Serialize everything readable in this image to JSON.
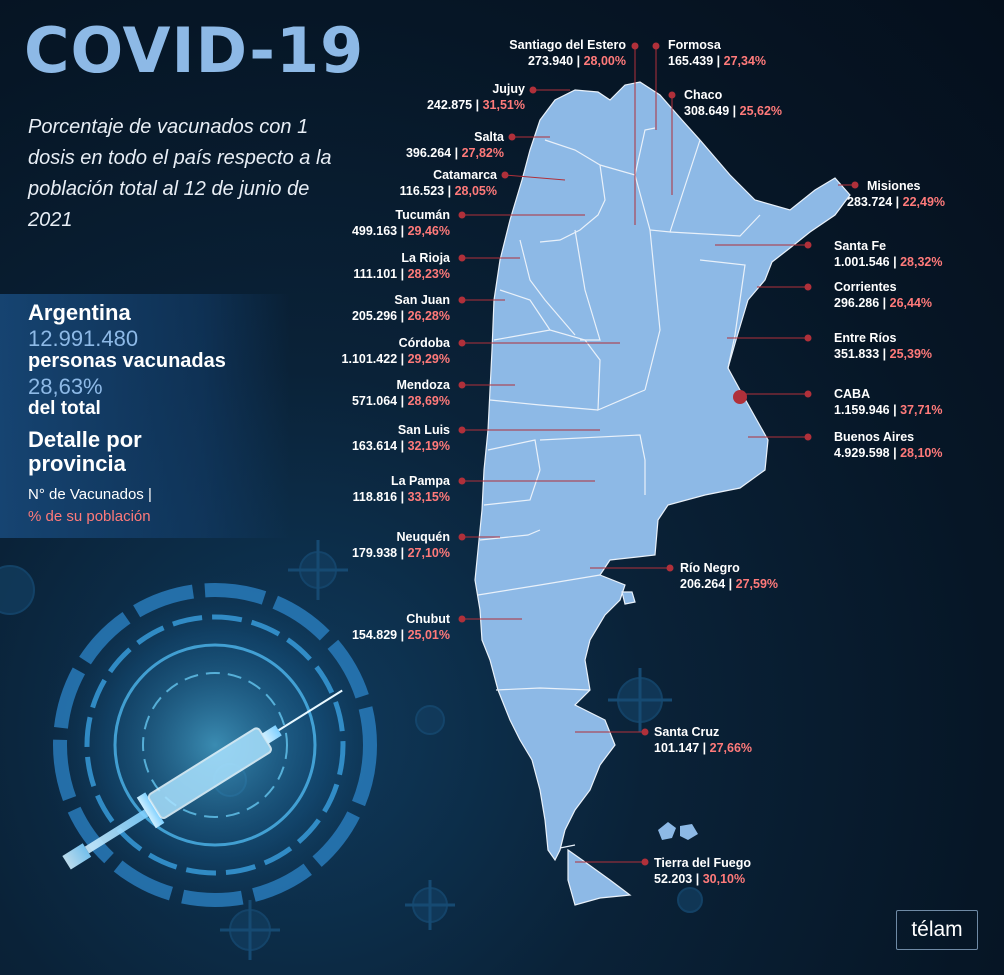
{
  "title": "COVID-19",
  "subtitle": "Porcentaje de vacunados con 1 dosis en todo el país respecto a la población total al 12 de junio de 2021",
  "summary": {
    "country": "Argentina",
    "total_vaccinated": "12.991.480",
    "people_label": "personas vacunadas",
    "percent": "28,63%",
    "of_total": "del total",
    "detail_heading": "Detalle por provincia",
    "legend_count": "N° de Vacunados |",
    "legend_percent": "% de su población"
  },
  "colors": {
    "map_fill": "#8db9e6",
    "map_border": "#e9f1fa",
    "leader_line": "#b0303a",
    "percent_text": "#ff7a7a",
    "title": "#8db9e6"
  },
  "provinces": [
    {
      "name": "Santiago del Estero",
      "count": "273.940",
      "percent": "28,00%"
    },
    {
      "name": "Formosa",
      "count": "165.439",
      "percent": "27,34%"
    },
    {
      "name": "Jujuy",
      "count": "242.875",
      "percent": "31,51%"
    },
    {
      "name": "Chaco",
      "count": "308.649",
      "percent": "25,62%"
    },
    {
      "name": "Salta",
      "count": "396.264",
      "percent": "27,82%"
    },
    {
      "name": "Catamarca",
      "count": "116.523",
      "percent": "28,05%"
    },
    {
      "name": "Misiones",
      "count": "283.724",
      "percent": "22,49%"
    },
    {
      "name": "Tucumán",
      "count": "499.163",
      "percent": "29,46%"
    },
    {
      "name": "Santa Fe",
      "count": "1.001.546",
      "percent": "28,32%"
    },
    {
      "name": "La Rioja",
      "count": "111.101",
      "percent": "28,23%"
    },
    {
      "name": "Corrientes",
      "count": "296.286",
      "percent": "26,44%"
    },
    {
      "name": "San Juan",
      "count": "205.296",
      "percent": "26,28%"
    },
    {
      "name": "Entre Ríos",
      "count": "351.833",
      "percent": "25,39%"
    },
    {
      "name": "Córdoba",
      "count": "1.101.422",
      "percent": "29,29%"
    },
    {
      "name": "Mendoza",
      "count": "571.064",
      "percent": "28,69%"
    },
    {
      "name": "CABA",
      "count": "1.159.946",
      "percent": "37,71%"
    },
    {
      "name": "San Luis",
      "count": "163.614",
      "percent": "32,19%"
    },
    {
      "name": "Buenos Aires",
      "count": "4.929.598",
      "percent": "28,10%"
    },
    {
      "name": "La Pampa",
      "count": "118.816",
      "percent": "33,15%"
    },
    {
      "name": "Neuquén",
      "count": "179.938",
      "percent": "27,10%"
    },
    {
      "name": "Río Negro",
      "count": "206.264",
      "percent": "27,59%"
    },
    {
      "name": "Chubut",
      "count": "154.829",
      "percent": "25,01%"
    },
    {
      "name": "Santa Cruz",
      "count": "101.147",
      "percent": "27,66%"
    },
    {
      "name": "Tierra del Fuego",
      "count": "52.203",
      "percent": "30,10%"
    }
  ],
  "brand": "télam",
  "icons": [
    "syringe-icon",
    "virus-icon"
  ]
}
